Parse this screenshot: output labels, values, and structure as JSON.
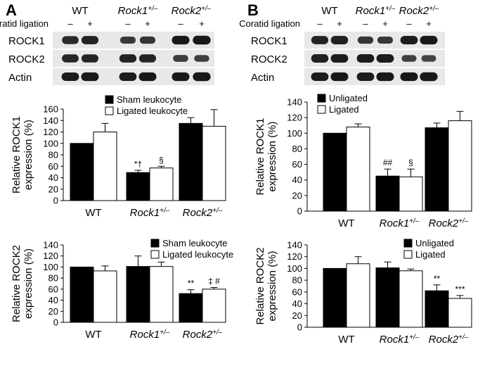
{
  "panels": [
    {
      "letter": "A",
      "blot": {
        "lane_groups": [
          "WT",
          "Rock1",
          "Rock2"
        ],
        "lane_group_sup": [
          "",
          "+/–",
          "+/–"
        ],
        "condition_label": "Coratid ligation",
        "condition_signs": [
          "–",
          "+",
          "–",
          "+",
          "–",
          "+"
        ],
        "bands": [
          {
            "name": "ROCK1",
            "intensity": [
              0.8,
              0.85,
              0.68,
              0.7,
              0.92,
              0.95
            ]
          },
          {
            "name": "ROCK2",
            "intensity": [
              0.82,
              0.84,
              0.86,
              0.84,
              0.64,
              0.62
            ]
          },
          {
            "name": "Actin",
            "intensity": [
              0.9,
              0.92,
              0.9,
              0.92,
              0.92,
              0.94
            ]
          }
        ]
      }
    },
    {
      "letter": "B",
      "blot": {
        "lane_groups": [
          "WT",
          "Rock1",
          "Rock2"
        ],
        "lane_group_sup": [
          "",
          "+/–",
          "+/–"
        ],
        "condition_label": "Coratid ligation",
        "condition_signs": [
          "–",
          "+",
          "–",
          "+",
          "–",
          "+"
        ],
        "bands": [
          {
            "name": "ROCK1",
            "intensity": [
              0.86,
              0.88,
              0.7,
              0.68,
              0.9,
              0.92
            ]
          },
          {
            "name": "ROCK2",
            "intensity": [
              0.88,
              0.9,
              0.9,
              0.9,
              0.6,
              0.58
            ]
          },
          {
            "name": "Actin",
            "intensity": [
              0.9,
              0.92,
              0.9,
              0.92,
              0.92,
              0.94
            ]
          }
        ]
      }
    }
  ],
  "colors": {
    "bar_primary": "#000000",
    "bar_secondary": "#ffffff",
    "blot_bg": "#e8e8e8",
    "band": "#111111"
  },
  "chart_data": [
    {
      "type": "bar",
      "panel": "A",
      "categories": [
        "WT",
        "Rock1",
        "Rock2"
      ],
      "category_sup": [
        "",
        "+/–",
        "+/–"
      ],
      "category_italic": [
        false,
        true,
        true
      ],
      "ylabel": "Relative ROCK1\nexpression (%)",
      "ylim": [
        0,
        160
      ],
      "yticks": [
        0,
        20,
        40,
        60,
        80,
        100,
        120,
        140,
        160
      ],
      "legend_position": "top-center",
      "series": [
        {
          "name": "Sham leukocyte",
          "values": [
            100,
            49,
            135
          ],
          "errors": [
            0,
            4,
            10
          ],
          "annotations": [
            "",
            "*†",
            ""
          ]
        },
        {
          "name": "Ligated leukocyte",
          "values": [
            120,
            57,
            130
          ],
          "errors": [
            15,
            3,
            29
          ],
          "annotations": [
            "",
            "§",
            ""
          ]
        }
      ]
    },
    {
      "type": "bar",
      "panel": "A",
      "categories": [
        "WT",
        "Rock1",
        "Rock2"
      ],
      "category_sup": [
        "",
        "+/–",
        "+/–"
      ],
      "category_italic": [
        false,
        true,
        true
      ],
      "ylabel": "Relative ROCK2\nexpression (%)",
      "ylim": [
        0,
        140
      ],
      "yticks": [
        0,
        20,
        40,
        60,
        80,
        100,
        120,
        140
      ],
      "legend_position": "top-right",
      "series": [
        {
          "name": "Sham leukocyte",
          "values": [
            100,
            101,
            52
          ],
          "errors": [
            0,
            19,
            7
          ],
          "annotations": [
            "",
            "",
            "**"
          ]
        },
        {
          "name": "Ligated leukocyte",
          "values": [
            93,
            101,
            60
          ],
          "errors": [
            9,
            8,
            3
          ],
          "annotations": [
            "",
            "",
            "‡ #"
          ]
        }
      ]
    },
    {
      "type": "bar",
      "panel": "B",
      "categories": [
        "WT",
        "Rock1",
        "Rock2"
      ],
      "category_sup": [
        "",
        "+/–",
        "+/–"
      ],
      "category_italic": [
        false,
        true,
        true
      ],
      "ylabel": "Relative ROCK1\nexpression (%)",
      "ylim": [
        0,
        140
      ],
      "yticks": [
        0,
        20,
        40,
        60,
        80,
        100,
        120,
        140
      ],
      "legend_position": "top-left",
      "series": [
        {
          "name": "Unligated",
          "values": [
            100,
            45,
            107
          ],
          "errors": [
            0,
            9,
            6
          ],
          "annotations": [
            "",
            "##",
            ""
          ]
        },
        {
          "name": "Ligated",
          "values": [
            108,
            44,
            116
          ],
          "errors": [
            4,
            10,
            12
          ],
          "annotations": [
            "",
            "§",
            ""
          ]
        }
      ]
    },
    {
      "type": "bar",
      "panel": "B",
      "categories": [
        "WT",
        "Rock1",
        "Rock2"
      ],
      "category_sup": [
        "",
        "+/–",
        "+/–"
      ],
      "category_italic": [
        false,
        true,
        true
      ],
      "ylabel": "Relative ROCK2\nexpression (%)",
      "ylim": [
        0,
        140
      ],
      "yticks": [
        0,
        20,
        40,
        60,
        80,
        100,
        120,
        140
      ],
      "legend_position": "top-right",
      "series": [
        {
          "name": "Unligated",
          "values": [
            100,
            101,
            62
          ],
          "errors": [
            0,
            10,
            10
          ],
          "annotations": [
            "",
            "",
            "**"
          ]
        },
        {
          "name": "Ligated",
          "values": [
            108,
            96,
            49
          ],
          "errors": [
            12,
            3,
            5
          ],
          "annotations": [
            "",
            "",
            "***"
          ]
        }
      ]
    }
  ]
}
